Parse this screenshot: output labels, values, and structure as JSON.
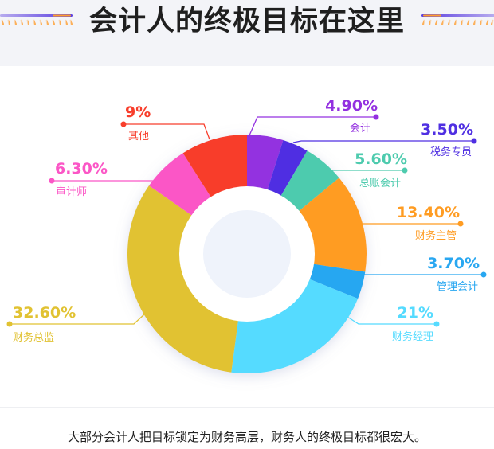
{
  "header": {
    "title": "会计人的终极目标在这里"
  },
  "colors": {
    "header_bg": "#f3f4f8",
    "deco_purple": "#5b3fe0",
    "deco_orange": "#ff9d2e"
  },
  "caption": "大部分会计人把目标锁定为财务高层，财务人的终极目标都很宏大。",
  "chart_data": {
    "type": "pie",
    "subtype": "donut",
    "title": "会计人的终极目标在这里",
    "start_angle_deg": 0,
    "direction": "clockwise",
    "categories": [
      "会计",
      "税务专员",
      "总账会计",
      "财务主管",
      "管理会计",
      "财务经理",
      "财务总监",
      "审计师",
      "其他"
    ],
    "values": [
      4.9,
      3.5,
      5.6,
      13.4,
      3.7,
      21,
      32.6,
      6.3,
      9
    ],
    "labels": [
      "4.90%",
      "3.50%",
      "5.60%",
      "13.40%",
      "3.70%",
      "21%",
      "32.60%",
      "6.30%",
      "9%"
    ],
    "colors": [
      "#9330e0",
      "#4f2fe2",
      "#4ecbae",
      "#ff9c22",
      "#28a7f1",
      "#55dbff",
      "#e1c232",
      "#fb56c6",
      "#f83e2c"
    ],
    "legend": "none (callout labels)"
  },
  "callouts": [
    {
      "value": "4.90%",
      "name": "会计",
      "color": "#9330e0"
    },
    {
      "value": "3.50%",
      "name": "税务专员",
      "color": "#4f2fe2"
    },
    {
      "value": "5.60%",
      "name": "总账会计",
      "color": "#4ecbae"
    },
    {
      "value": "13.40%",
      "name": "财务主管",
      "color": "#ff9c22"
    },
    {
      "value": "3.70%",
      "name": "管理会计",
      "color": "#28a7f1"
    },
    {
      "value": "21%",
      "name": "财务经理",
      "color": "#55dbff"
    },
    {
      "value": "32.60%",
      "name": "财务总监",
      "color": "#e1c232"
    },
    {
      "value": "6.30%",
      "name": "审计师",
      "color": "#fb56c6"
    },
    {
      "value": "9%",
      "name": "其他",
      "color": "#f83e2c"
    }
  ]
}
